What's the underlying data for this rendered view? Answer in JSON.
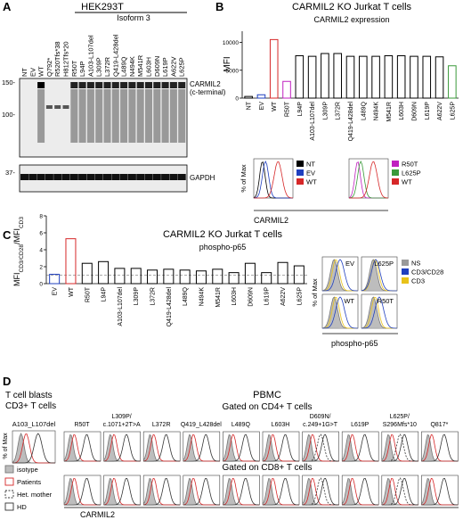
{
  "panel_labels": [
    "A",
    "B",
    "C",
    "D"
  ],
  "panel_a": {
    "cell_line": "HEK293T",
    "group_label": "Isoform 3",
    "lanes": [
      "NT",
      "EV",
      "WT",
      "Q792*",
      "R520Tfs*38",
      "H812Tfs*20",
      "R50T",
      "L94P",
      "A103-L107del",
      "L309P",
      "L372R",
      "Q419-L428del",
      "L489Q",
      "N494K",
      "M541R",
      "L603H",
      "D609N",
      "L619P",
      "A622V",
      "L625P"
    ],
    "markers": [
      "150-",
      "100-",
      "37-"
    ],
    "blots": [
      "CARMIL2",
      "(c-terminal)",
      "GAPDH"
    ]
  },
  "chart_data": [
    {
      "type": "bar",
      "title": "CARMIL2 KO Jurkat T cells",
      "subtitle": "CARMIL2 expression",
      "y_label": "MFI",
      "categories": [
        "NT",
        "EV",
        "WT",
        "R50T",
        "L94P",
        "A103-L107del",
        "L309P",
        "L372R",
        "Q419-L428del",
        "L489Q",
        "N494K",
        "M541R",
        "L603H",
        "D609N",
        "L619P",
        "A622V",
        "L625P"
      ],
      "values": [
        300,
        600,
        10500,
        3000,
        7600,
        7500,
        8000,
        8000,
        7500,
        7500,
        7500,
        7600,
        7600,
        7500,
        7500,
        7400,
        5800
      ],
      "colors": [
        "#000000",
        "#1f3fbf",
        "#d62728",
        "#c020c0",
        "#000000",
        "#000000",
        "#000000",
        "#000000",
        "#000000",
        "#000000",
        "#000000",
        "#000000",
        "#000000",
        "#000000",
        "#000000",
        "#000000",
        "#3a9a3a"
      ],
      "ylim": [
        0,
        12000
      ],
      "yticks": [
        0,
        5000,
        10000
      ],
      "insets": {
        "y_label": "% of Max",
        "x_label": "CARMIL2",
        "legends": [
          [
            {
              "name": "NT",
              "color": "#000000"
            },
            {
              "name": "EV",
              "color": "#1f3fbf"
            },
            {
              "name": "WT",
              "color": "#d62728"
            }
          ],
          [
            {
              "name": "R50T",
              "color": "#c020c0"
            },
            {
              "name": "L625P",
              "color": "#3a9a3a"
            },
            {
              "name": "WT",
              "color": "#d62728"
            }
          ]
        ]
      }
    },
    {
      "type": "bar",
      "title": "CARMIL2 KO Jurkat T cells",
      "subtitle": "phospho-p65",
      "y_label_parts": [
        "MFI",
        "CD3/CD28",
        "/MFI",
        "CD3"
      ],
      "categories": [
        "EV",
        "WT",
        "R50T",
        "L94P",
        "A103-L107del",
        "L309P",
        "L372R",
        "Q419-L428del",
        "L489Q",
        "N494K",
        "M541R",
        "L603H",
        "D609N",
        "L619P",
        "A622V",
        "L625P"
      ],
      "values": [
        1.1,
        5.3,
        2.4,
        2.6,
        1.8,
        1.8,
        1.6,
        1.7,
        1.6,
        1.5,
        1.7,
        1.3,
        2.4,
        1.3,
        2.5,
        2.1
      ],
      "colors": [
        "#1f3fbf",
        "#d62728",
        "#000000",
        "#000000",
        "#000000",
        "#000000",
        "#000000",
        "#000000",
        "#000000",
        "#000000",
        "#000000",
        "#000000",
        "#000000",
        "#000000",
        "#000000",
        "#000000"
      ],
      "ylim": [
        0,
        8
      ],
      "yticks": [
        0,
        2,
        4,
        6,
        8
      ],
      "reference_line": 1,
      "insets": {
        "y_label": "% of Max",
        "x_label": "phospho-p65",
        "panels": [
          "EV",
          "L625P",
          "WT",
          "R50T"
        ],
        "legend": [
          {
            "name": "NS",
            "color": "#9a9a9a"
          },
          {
            "name": "CD3/CD28",
            "color": "#1f3fbf"
          },
          {
            "name": "CD3",
            "color": "#e8c21a"
          }
        ]
      }
    }
  ],
  "panel_d": {
    "left_title": [
      "T cell blasts",
      "CD3+ T cells"
    ],
    "left_sample": "A103_L107del",
    "group": "PBMC",
    "cd4_label": "Gated on CD4+ T cells",
    "cd8_label": "Gated on CD8+ T cells",
    "samples": [
      [
        "R50T"
      ],
      [
        "L309P/",
        "c.1071+2T>A"
      ],
      [
        "L372R"
      ],
      [
        "Q419_L428del"
      ],
      [
        "L489Q"
      ],
      [
        "L603H"
      ],
      [
        "D609N/",
        "c.249+1G>T"
      ],
      [
        "L619P"
      ],
      [
        "L625P/",
        "S296Mfs*10"
      ],
      [
        "Q817*"
      ]
    ],
    "y_label": "% of Max",
    "x_label": "CARMIL2",
    "legend": [
      "isotype",
      "Patients",
      "Het. mother",
      "HD"
    ]
  }
}
